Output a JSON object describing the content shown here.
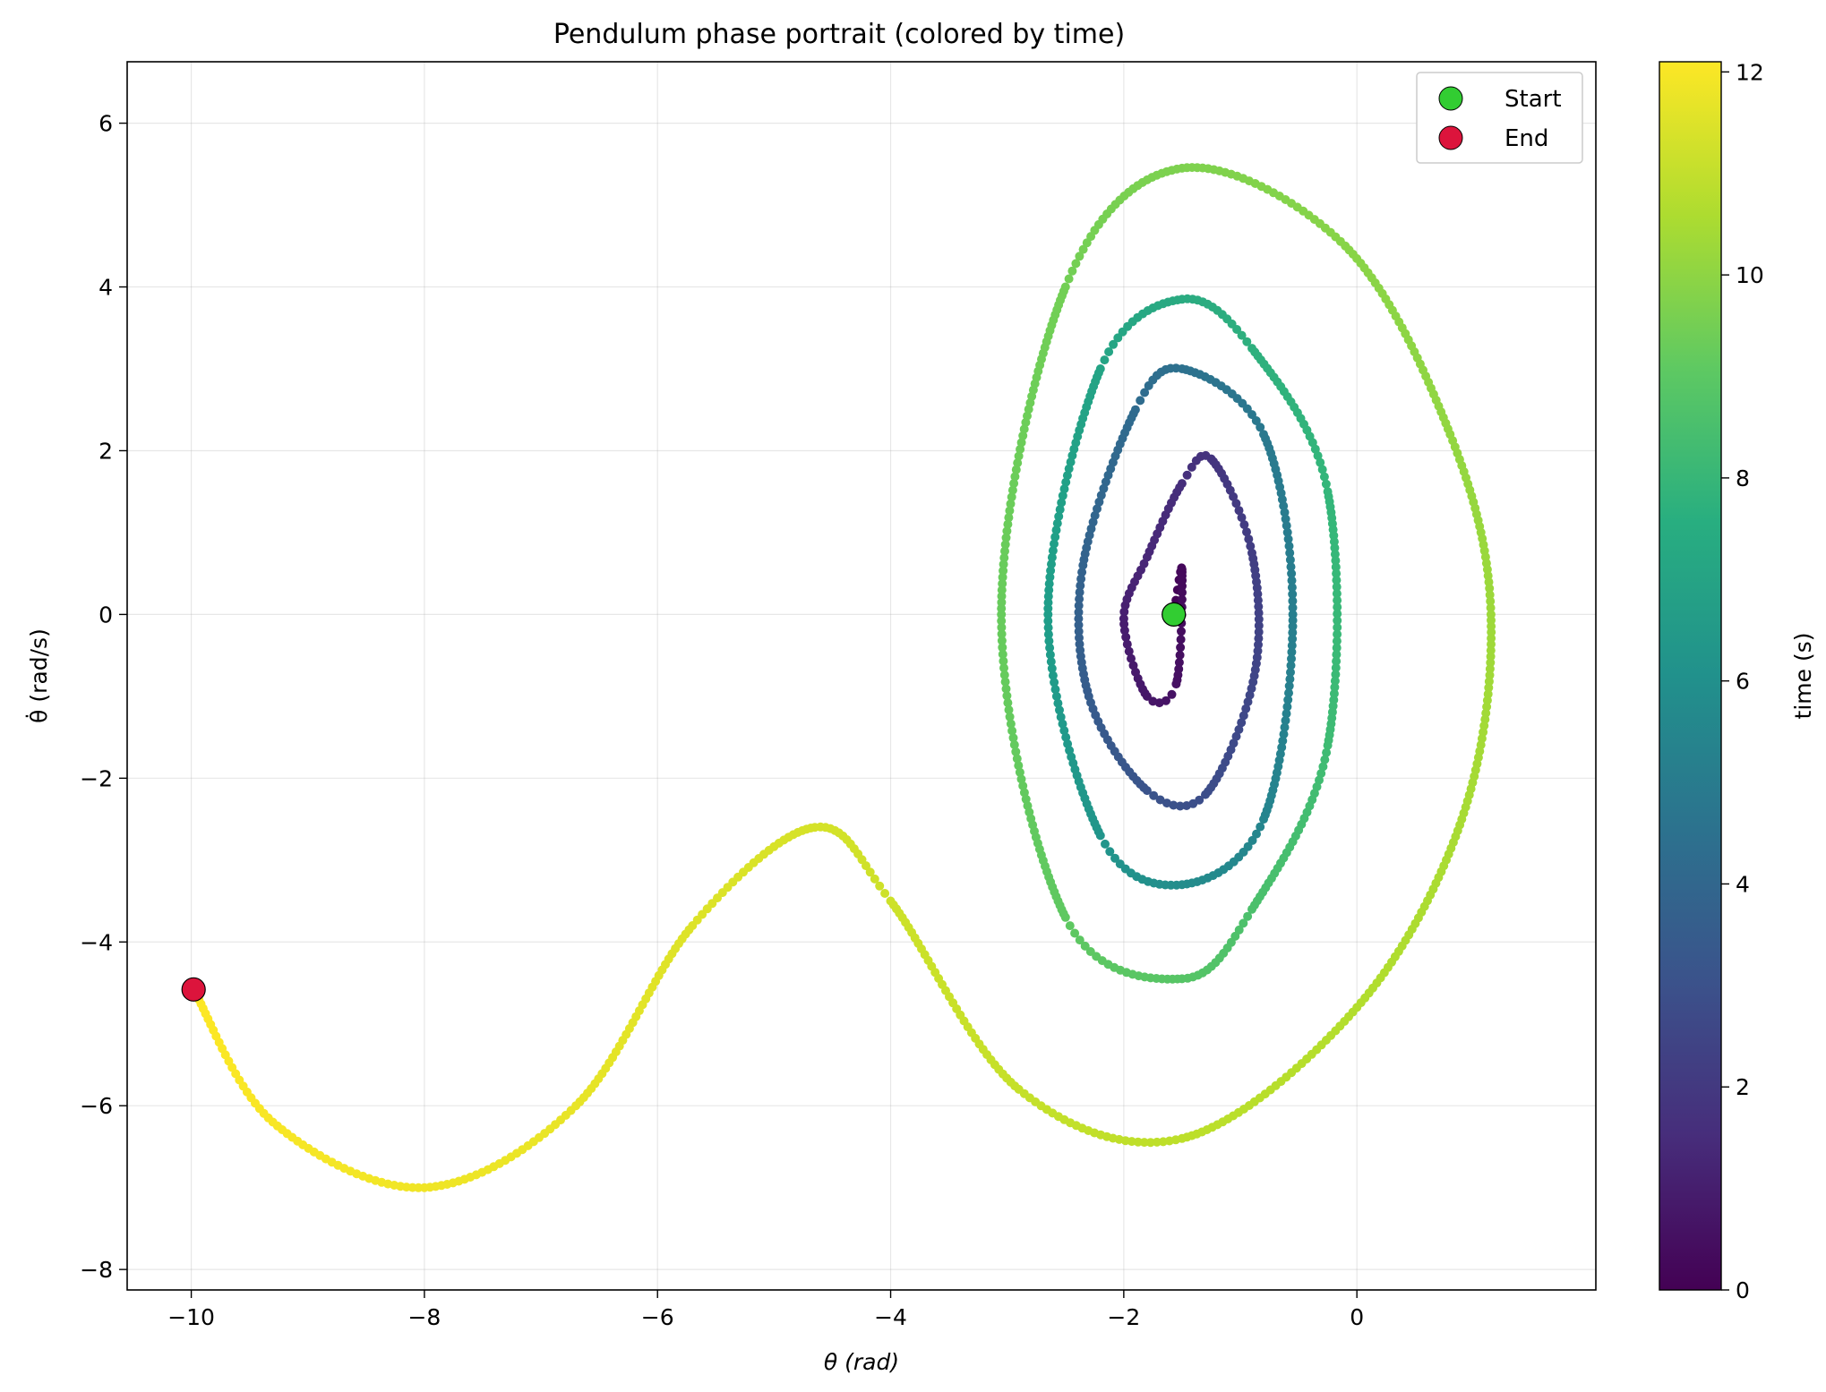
{
  "chart_data": {
    "type": "scatter",
    "title": "Pendulum phase portrait (colored by time)",
    "xlabel": "θ (rad)",
    "ylabel": "θ̇ (rad/s)",
    "xlim": [
      -10.55,
      2.05
    ],
    "ylim": [
      -8.25,
      6.75
    ],
    "x_ticks": [
      -10,
      -8,
      -6,
      -4,
      -2,
      0
    ],
    "x_tick_labels": [
      "−10",
      "−8",
      "−6",
      "−4",
      "−2",
      "0"
    ],
    "y_ticks": [
      -8,
      -6,
      -4,
      -2,
      0,
      2,
      4,
      6
    ],
    "y_tick_labels": [
      "−8",
      "−6",
      "−4",
      "−2",
      "0",
      "2",
      "4",
      "6"
    ],
    "grid": true,
    "colormap": "viridis",
    "colorbar": {
      "label": "time (s)",
      "range": [
        0,
        12.1
      ],
      "ticks": [
        0,
        2,
        4,
        6,
        8,
        10,
        12
      ],
      "tick_labels": [
        "0",
        "2",
        "4",
        "6",
        "8",
        "10",
        "12"
      ]
    },
    "trajectory_keypoints": [
      {
        "t": 0.0,
        "x": -1.571,
        "y": 0.0
      },
      {
        "t": 0.25,
        "x": -1.5,
        "y": 0.55
      },
      {
        "t": 0.55,
        "x": -1.55,
        "y": -0.85
      },
      {
        "t": 0.75,
        "x": -1.8,
        "y": -1.0
      },
      {
        "t": 1.0,
        "x": -2.0,
        "y": -0.05
      },
      {
        "t": 1.3,
        "x": -1.8,
        "y": 0.7
      },
      {
        "t": 1.6,
        "x": -1.5,
        "y": 1.6
      },
      {
        "t": 1.85,
        "x": -1.25,
        "y": 1.9
      },
      {
        "t": 2.2,
        "x": -0.9,
        "y": 0.75
      },
      {
        "t": 2.5,
        "x": -0.88,
        "y": -0.75
      },
      {
        "t": 2.85,
        "x": -1.3,
        "y": -2.2
      },
      {
        "t": 3.1,
        "x": -1.8,
        "y": -2.15
      },
      {
        "t": 3.5,
        "x": -2.3,
        "y": -1.0
      },
      {
        "t": 3.8,
        "x": -2.35,
        "y": 0.6
      },
      {
        "t": 4.2,
        "x": -1.9,
        "y": 2.5
      },
      {
        "t": 4.5,
        "x": -1.5,
        "y": 3.0
      },
      {
        "t": 4.9,
        "x": -0.8,
        "y": 2.2
      },
      {
        "t": 5.2,
        "x": -0.55,
        "y": 0.0
      },
      {
        "t": 5.5,
        "x": -0.8,
        "y": -2.5
      },
      {
        "t": 5.9,
        "x": -1.5,
        "y": -3.3
      },
      {
        "t": 6.3,
        "x": -2.2,
        "y": -2.7
      },
      {
        "t": 6.7,
        "x": -2.65,
        "y": 0.0
      },
      {
        "t": 7.05,
        "x": -2.2,
        "y": 3.0
      },
      {
        "t": 7.4,
        "x": -1.5,
        "y": 3.85
      },
      {
        "t": 7.65,
        "x": -0.9,
        "y": 3.25
      },
      {
        "t": 8.0,
        "x": -0.25,
        "y": 1.5
      },
      {
        "t": 8.3,
        "x": -0.25,
        "y": -1.6
      },
      {
        "t": 8.6,
        "x": -0.9,
        "y": -3.6
      },
      {
        "t": 8.85,
        "x": -1.5,
        "y": -4.45
      },
      {
        "t": 9.05,
        "x": -2.5,
        "y": -3.7
      },
      {
        "t": 9.25,
        "x": -3.05,
        "y": 0.0
      },
      {
        "t": 9.5,
        "x": -2.5,
        "y": 4.0
      },
      {
        "t": 9.7,
        "x": -1.5,
        "y": 5.45
      },
      {
        "t": 9.9,
        "x": -0.1,
        "y": 4.5
      },
      {
        "t": 10.1,
        "x": 0.8,
        "y": 2.2
      },
      {
        "t": 10.3,
        "x": 1.15,
        "y": 0.0
      },
      {
        "t": 10.5,
        "x": 0.9,
        "y": -2.5
      },
      {
        "t": 10.7,
        "x": 0.0,
        "y": -4.8
      },
      {
        "t": 10.9,
        "x": -1.5,
        "y": -6.4
      },
      {
        "t": 11.05,
        "x": -2.9,
        "y": -5.8
      },
      {
        "t": 11.2,
        "x": -4.0,
        "y": -3.5
      },
      {
        "t": 11.35,
        "x": -4.65,
        "y": -2.6
      },
      {
        "t": 11.5,
        "x": -5.7,
        "y": -3.8
      },
      {
        "t": 11.7,
        "x": -6.7,
        "y": -6.0
      },
      {
        "t": 11.85,
        "x": -8.0,
        "y": -7.0
      },
      {
        "t": 12.0,
        "x": -9.3,
        "y": -6.2
      },
      {
        "t": 12.1,
        "x": -9.98,
        "y": -4.58
      }
    ],
    "markers": [
      {
        "name": "Start",
        "x": -1.571,
        "y": 0.0,
        "color": "#32CD32"
      },
      {
        "name": "End",
        "x": -9.98,
        "y": -4.58,
        "color": "#DC143C"
      }
    ],
    "legend": {
      "position": "top-right"
    }
  }
}
